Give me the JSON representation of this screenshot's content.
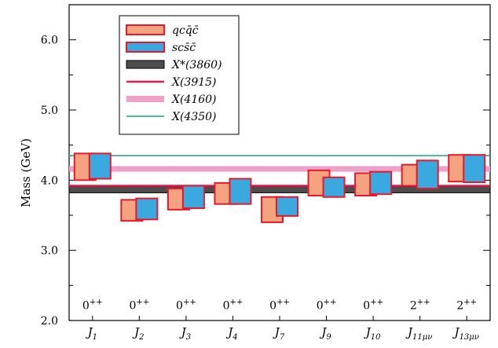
{
  "chart_data": {
    "type": "bar",
    "ylabel": "Mass (GeV)",
    "ylim": [
      2.0,
      6.5
    ],
    "yticks": [
      "2.0",
      "3.0",
      "4.0",
      "5.0",
      "6.0"
    ],
    "categories": [
      "J1",
      "J2",
      "J3",
      "J4",
      "J7",
      "J9",
      "J10",
      "J11μν",
      "J13μν"
    ],
    "category_labels": [
      {
        "base": "J",
        "sub": "1"
      },
      {
        "base": "J",
        "sub": "2"
      },
      {
        "base": "J",
        "sub": "3"
      },
      {
        "base": "J",
        "sub": "4"
      },
      {
        "base": "J",
        "sub": "7"
      },
      {
        "base": "J",
        "sub": "9"
      },
      {
        "base": "J",
        "sub": "10"
      },
      {
        "base": "J",
        "sub": "11μν"
      },
      {
        "base": "J",
        "sub": "13μν"
      }
    ],
    "jpc": [
      {
        "base": "0",
        "sup": "++"
      },
      {
        "base": "0",
        "sup": "++"
      },
      {
        "base": "0",
        "sup": "++"
      },
      {
        "base": "0",
        "sup": "++"
      },
      {
        "base": "0",
        "sup": "++"
      },
      {
        "base": "0",
        "sup": "++"
      },
      {
        "base": "0",
        "sup": "++"
      },
      {
        "base": "2",
        "sup": "++"
      },
      {
        "base": "2",
        "sup": "++"
      }
    ],
    "series": [
      {
        "label_html": "qcq̄c̄",
        "fill": "#f5a27f",
        "stroke": "#e8192c",
        "ranges": [
          [
            4.0,
            4.38
          ],
          [
            3.42,
            3.72
          ],
          [
            3.58,
            3.88
          ],
          [
            3.66,
            3.96
          ],
          [
            3.4,
            3.76
          ],
          [
            3.78,
            4.14
          ],
          [
            3.78,
            4.1
          ],
          [
            3.92,
            4.22
          ],
          [
            3.98,
            4.36
          ]
        ]
      },
      {
        "label_html": "scs̄c̄",
        "fill": "#3aa9df",
        "stroke": "#e8192c",
        "ranges": [
          [
            4.02,
            4.38
          ],
          [
            3.44,
            3.74
          ],
          [
            3.6,
            3.92
          ],
          [
            3.66,
            4.02
          ],
          [
            3.49,
            3.76
          ],
          [
            3.76,
            4.04
          ],
          [
            3.8,
            4.12
          ],
          [
            3.88,
            4.28
          ],
          [
            3.97,
            4.36
          ]
        ]
      }
    ],
    "reference_lines": [
      {
        "name": "X*(3860)",
        "band": [
          3.82,
          3.91
        ],
        "fill": "#4d4d4d",
        "stroke": "#000000",
        "kind": "band"
      },
      {
        "name": "X(3915)",
        "value": 3.92,
        "color": "#e8194d",
        "width": 2.5,
        "kind": "line"
      },
      {
        "name": "X(4160)",
        "band": [
          4.12,
          4.2
        ],
        "fill": "#eea1c8",
        "kind": "band"
      },
      {
        "name": "X(4350)",
        "value": 4.35,
        "color": "#1aa37a",
        "width": 1.5,
        "kind": "line"
      }
    ],
    "legend_position": "top-left"
  },
  "legend": {
    "items": [
      {
        "id": "qcqc",
        "text": "qcq̄c̄"
      },
      {
        "id": "scsc",
        "text": "scs̄c̄"
      },
      {
        "id": "x3860",
        "text": "X*(3860)"
      },
      {
        "id": "x3915",
        "text": "X(3915)"
      },
      {
        "id": "x4160",
        "text": "X(4160)"
      },
      {
        "id": "x4350",
        "text": "X(4350)"
      }
    ]
  }
}
